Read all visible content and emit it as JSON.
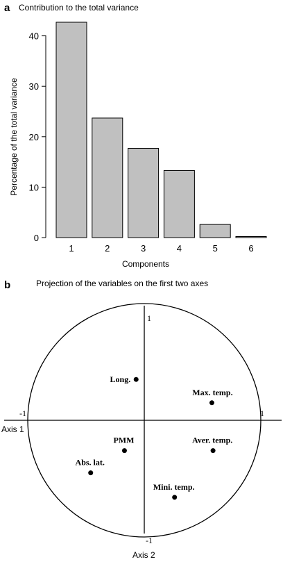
{
  "panel_a": {
    "letter": "a",
    "title": "Contribution to the total variance"
  },
  "panel_b": {
    "letter": "b",
    "title": "Projection of the variables on the first two axes"
  },
  "chart_data": [
    {
      "type": "bar",
      "title": "Contribution to the total variance",
      "xlabel": "Components",
      "ylabel": "Percentage of the total variance",
      "categories": [
        "1",
        "2",
        "3",
        "4",
        "5",
        "6"
      ],
      "values": [
        42.7,
        23.7,
        17.7,
        13.3,
        2.6,
        0.1
      ],
      "ylim": [
        0,
        45
      ],
      "yticks": [
        "0",
        "10",
        "20",
        "30",
        "40"
      ],
      "grid": false,
      "bar_color": "#c0c0c0"
    },
    {
      "type": "scatter",
      "title": "Projection of the variables on the first two axes",
      "xlabel": "Axis 1",
      "ylabel": "Axis 2",
      "xlim": [
        -1,
        1
      ],
      "ylim": [
        -1,
        1
      ],
      "axis_labels": {
        "x_min": "-1",
        "x_max": "1",
        "y_min": "-1",
        "y_max": "1"
      },
      "unit_circle": true,
      "points": [
        {
          "label": "Long.",
          "x": -0.07,
          "y": 0.35
        },
        {
          "label": "Max. temp.",
          "x": 0.58,
          "y": 0.15
        },
        {
          "label": "PMM",
          "x": -0.17,
          "y": -0.26
        },
        {
          "label": "Aver. temp.",
          "x": 0.59,
          "y": -0.26
        },
        {
          "label": "Abs. lat.",
          "x": -0.46,
          "y": -0.45
        },
        {
          "label": "Mini. temp.",
          "x": 0.26,
          "y": -0.66
        }
      ]
    }
  ]
}
